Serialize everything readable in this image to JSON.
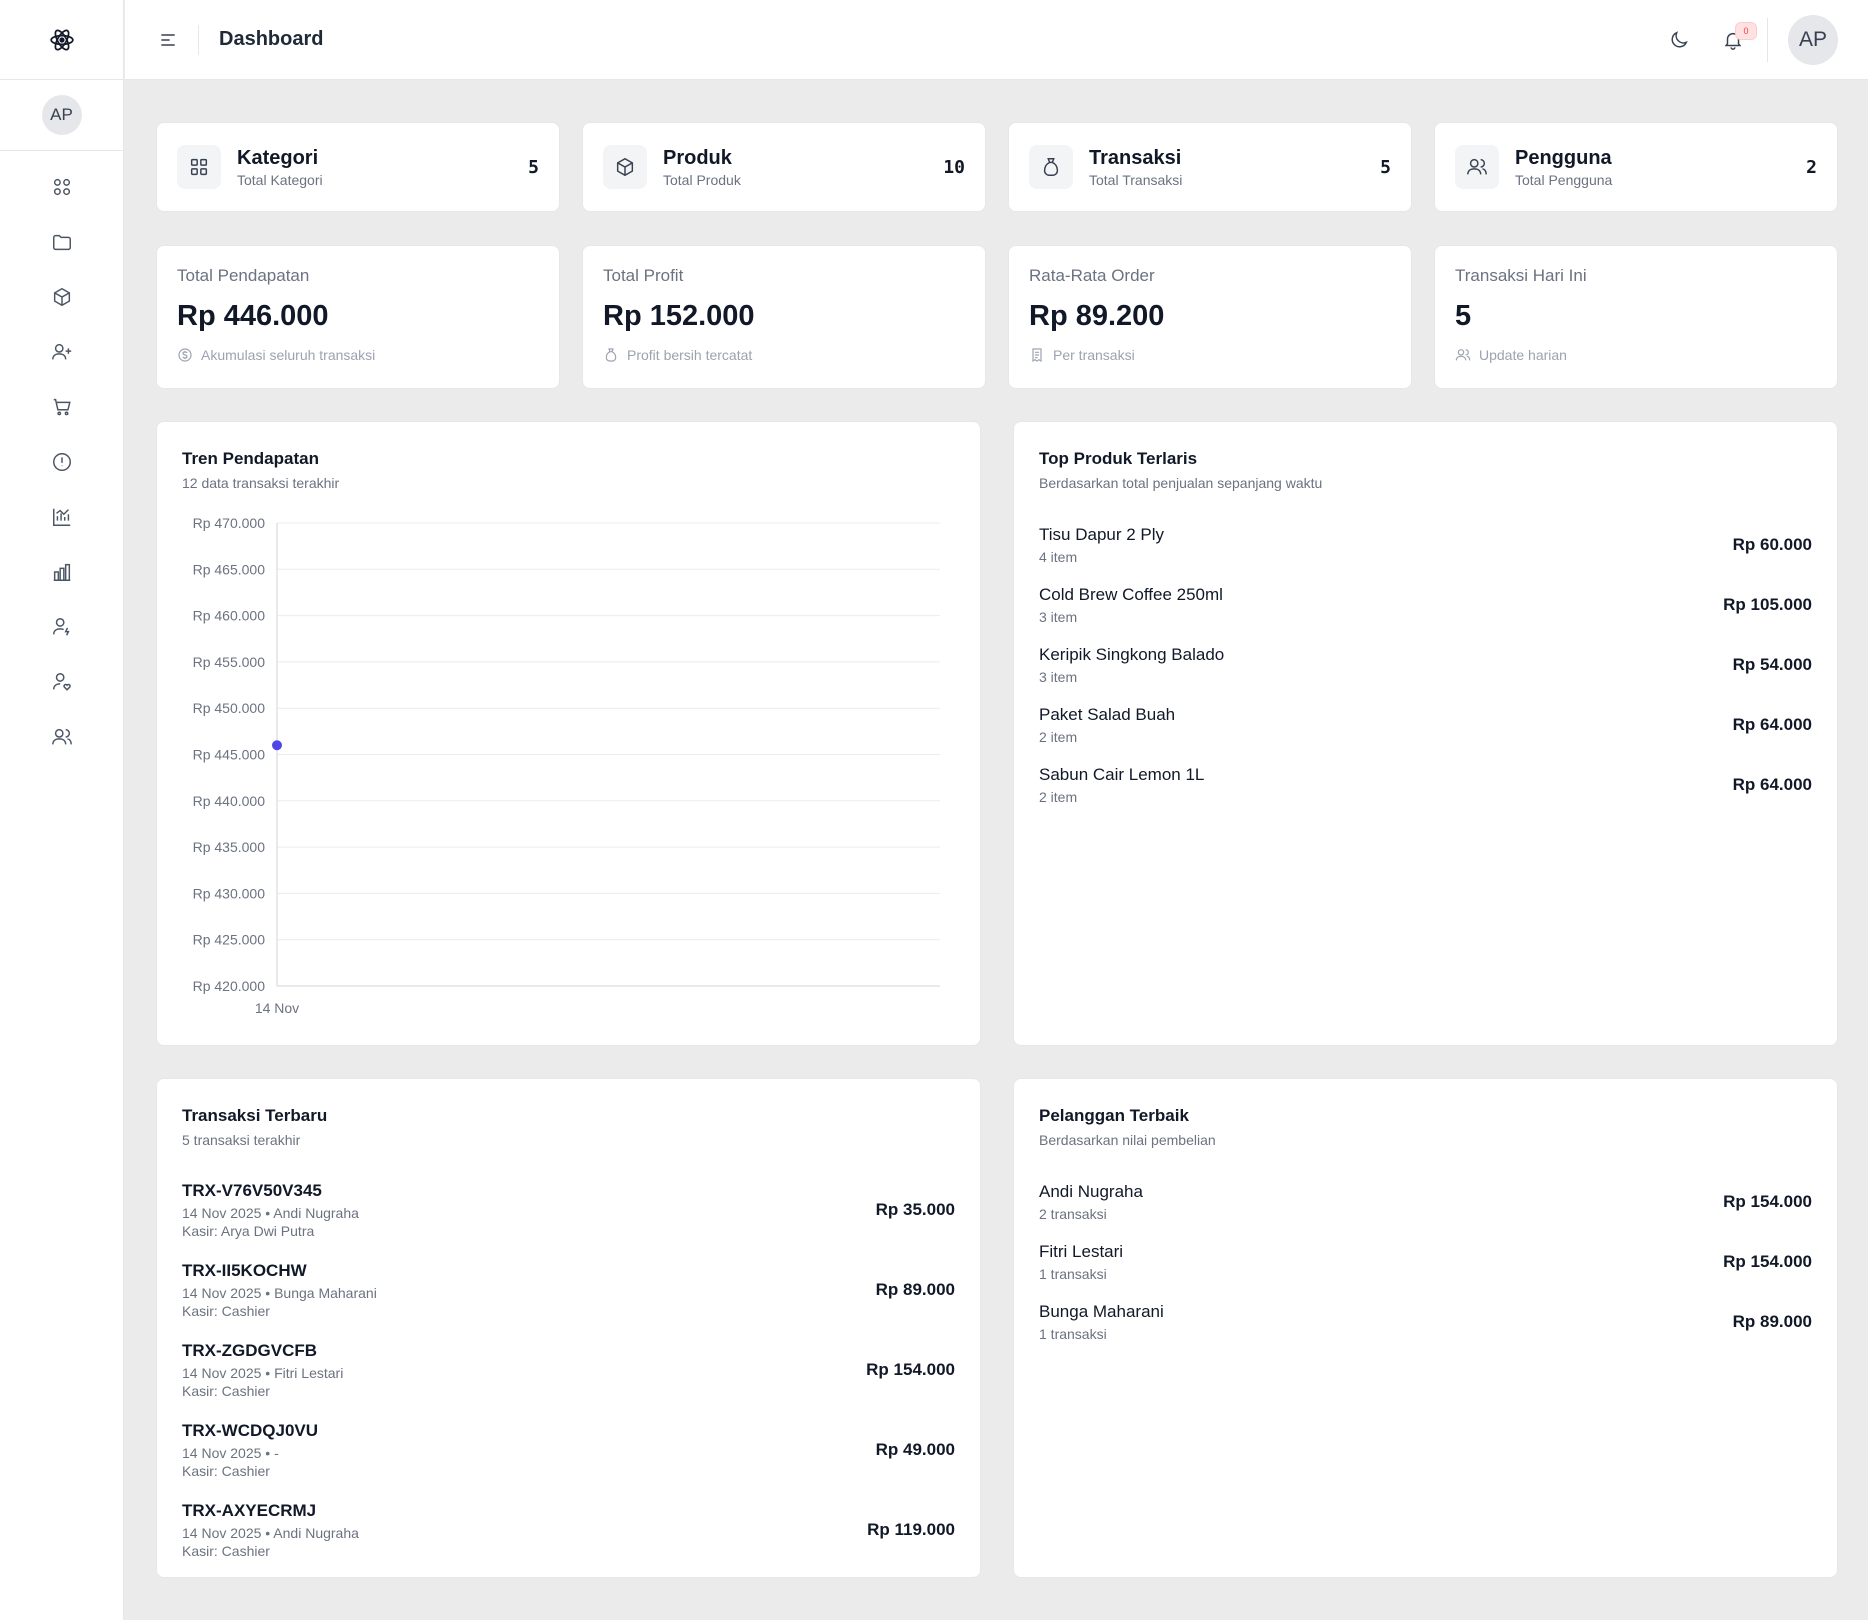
{
  "sidebar": {
    "logo_icon": "atom-icon",
    "user_initials": "AP",
    "items": [
      {
        "icon": "grid-icon"
      },
      {
        "icon": "folder-icon"
      },
      {
        "icon": "box-icon"
      },
      {
        "icon": "user-plus-icon"
      },
      {
        "icon": "cart-icon"
      },
      {
        "icon": "info-icon"
      },
      {
        "icon": "chart-up-icon"
      },
      {
        "icon": "bar-chart-icon"
      },
      {
        "icon": "user-bolt-icon"
      },
      {
        "icon": "user-heart-icon"
      },
      {
        "icon": "users-icon"
      }
    ]
  },
  "header": {
    "title": "Dashboard",
    "notification_count": "0",
    "user_initials": "AP"
  },
  "stats": [
    {
      "title": "Kategori",
      "subtitle": "Total Kategori",
      "count": "5",
      "icon": "grid-icon"
    },
    {
      "title": "Produk",
      "subtitle": "Total Produk",
      "count": "10",
      "icon": "box-icon"
    },
    {
      "title": "Transaksi",
      "subtitle": "Total Transaksi",
      "count": "5",
      "icon": "money-bag-icon"
    },
    {
      "title": "Pengguna",
      "subtitle": "Total Pengguna",
      "count": "2",
      "icon": "users-icon"
    }
  ],
  "metrics": [
    {
      "label": "Total Pendapatan",
      "value": "Rp 446.000",
      "foot": "Akumulasi seluruh transaksi",
      "icon": "dollar-circle-icon"
    },
    {
      "label": "Total Profit",
      "value": "Rp 152.000",
      "foot": "Profit bersih tercatat",
      "icon": "money-bag-icon"
    },
    {
      "label": "Rata-Rata Order",
      "value": "Rp 89.200",
      "foot": "Per transaksi",
      "icon": "receipt-icon"
    },
    {
      "label": "Transaksi Hari Ini",
      "value": "5",
      "foot": "Update harian",
      "icon": "users-icon"
    }
  ],
  "trend": {
    "title": "Tren Pendapatan",
    "subtitle": "12 data transaksi terakhir"
  },
  "chart_data": {
    "type": "line",
    "title": "Tren Pendapatan",
    "x": [
      "14 Nov"
    ],
    "series": [
      {
        "values": [
          446000
        ]
      }
    ],
    "ylim": [
      420000,
      470000
    ],
    "yticks": [
      "Rp 470.000",
      "Rp 465.000",
      "Rp 460.000",
      "Rp 455.000",
      "Rp 450.000",
      "Rp 445.000",
      "Rp 440.000",
      "Rp 435.000",
      "Rp 430.000",
      "Rp 425.000",
      "Rp 420.000"
    ],
    "ytick_values": [
      470000,
      465000,
      460000,
      455000,
      450000,
      445000,
      440000,
      435000,
      430000,
      425000,
      420000
    ],
    "xticks": [
      "14 Nov"
    ],
    "grid": true,
    "color": "#4f46e5"
  },
  "top_products": {
    "title": "Top Produk Terlaris",
    "subtitle": "Berdasarkan total penjualan sepanjang waktu",
    "items": [
      {
        "name": "Tisu Dapur 2 Ply",
        "qty": "4 item",
        "total": "Rp 60.000"
      },
      {
        "name": "Cold Brew Coffee 250ml",
        "qty": "3 item",
        "total": "Rp 105.000"
      },
      {
        "name": "Keripik Singkong Balado",
        "qty": "3 item",
        "total": "Rp 54.000"
      },
      {
        "name": "Paket Salad Buah",
        "qty": "2 item",
        "total": "Rp 64.000"
      },
      {
        "name": "Sabun Cair Lemon 1L",
        "qty": "2 item",
        "total": "Rp 64.000"
      }
    ]
  },
  "recent_transactions": {
    "title": "Transaksi Terbaru",
    "subtitle": "5 transaksi terakhir",
    "items": [
      {
        "id": "TRX-V76V50V345",
        "meta": "14 Nov 2025 • Andi Nugraha",
        "cashier": "Kasir: Arya Dwi Putra",
        "total": "Rp 35.000"
      },
      {
        "id": "TRX-II5KOCHW",
        "meta": "14 Nov 2025 • Bunga Maharani",
        "cashier": "Kasir: Cashier",
        "total": "Rp 89.000"
      },
      {
        "id": "TRX-ZGDGVCFB",
        "meta": "14 Nov 2025 • Fitri Lestari",
        "cashier": "Kasir: Cashier",
        "total": "Rp 154.000"
      },
      {
        "id": "TRX-WCDQJ0VU",
        "meta": "14 Nov 2025 • -",
        "cashier": "Kasir: Cashier",
        "total": "Rp 49.000"
      },
      {
        "id": "TRX-AXYECRMJ",
        "meta": "14 Nov 2025 • Andi Nugraha",
        "cashier": "Kasir: Cashier",
        "total": "Rp 119.000"
      }
    ]
  },
  "best_customers": {
    "title": "Pelanggan Terbaik",
    "subtitle": "Berdasarkan nilai pembelian",
    "items": [
      {
        "name": "Andi Nugraha",
        "count": "2 transaksi",
        "total": "Rp 154.000"
      },
      {
        "name": "Fitri Lestari",
        "count": "1 transaksi",
        "total": "Rp 154.000"
      },
      {
        "name": "Bunga Maharani",
        "count": "1 transaksi",
        "total": "Rp 89.000"
      }
    ]
  }
}
